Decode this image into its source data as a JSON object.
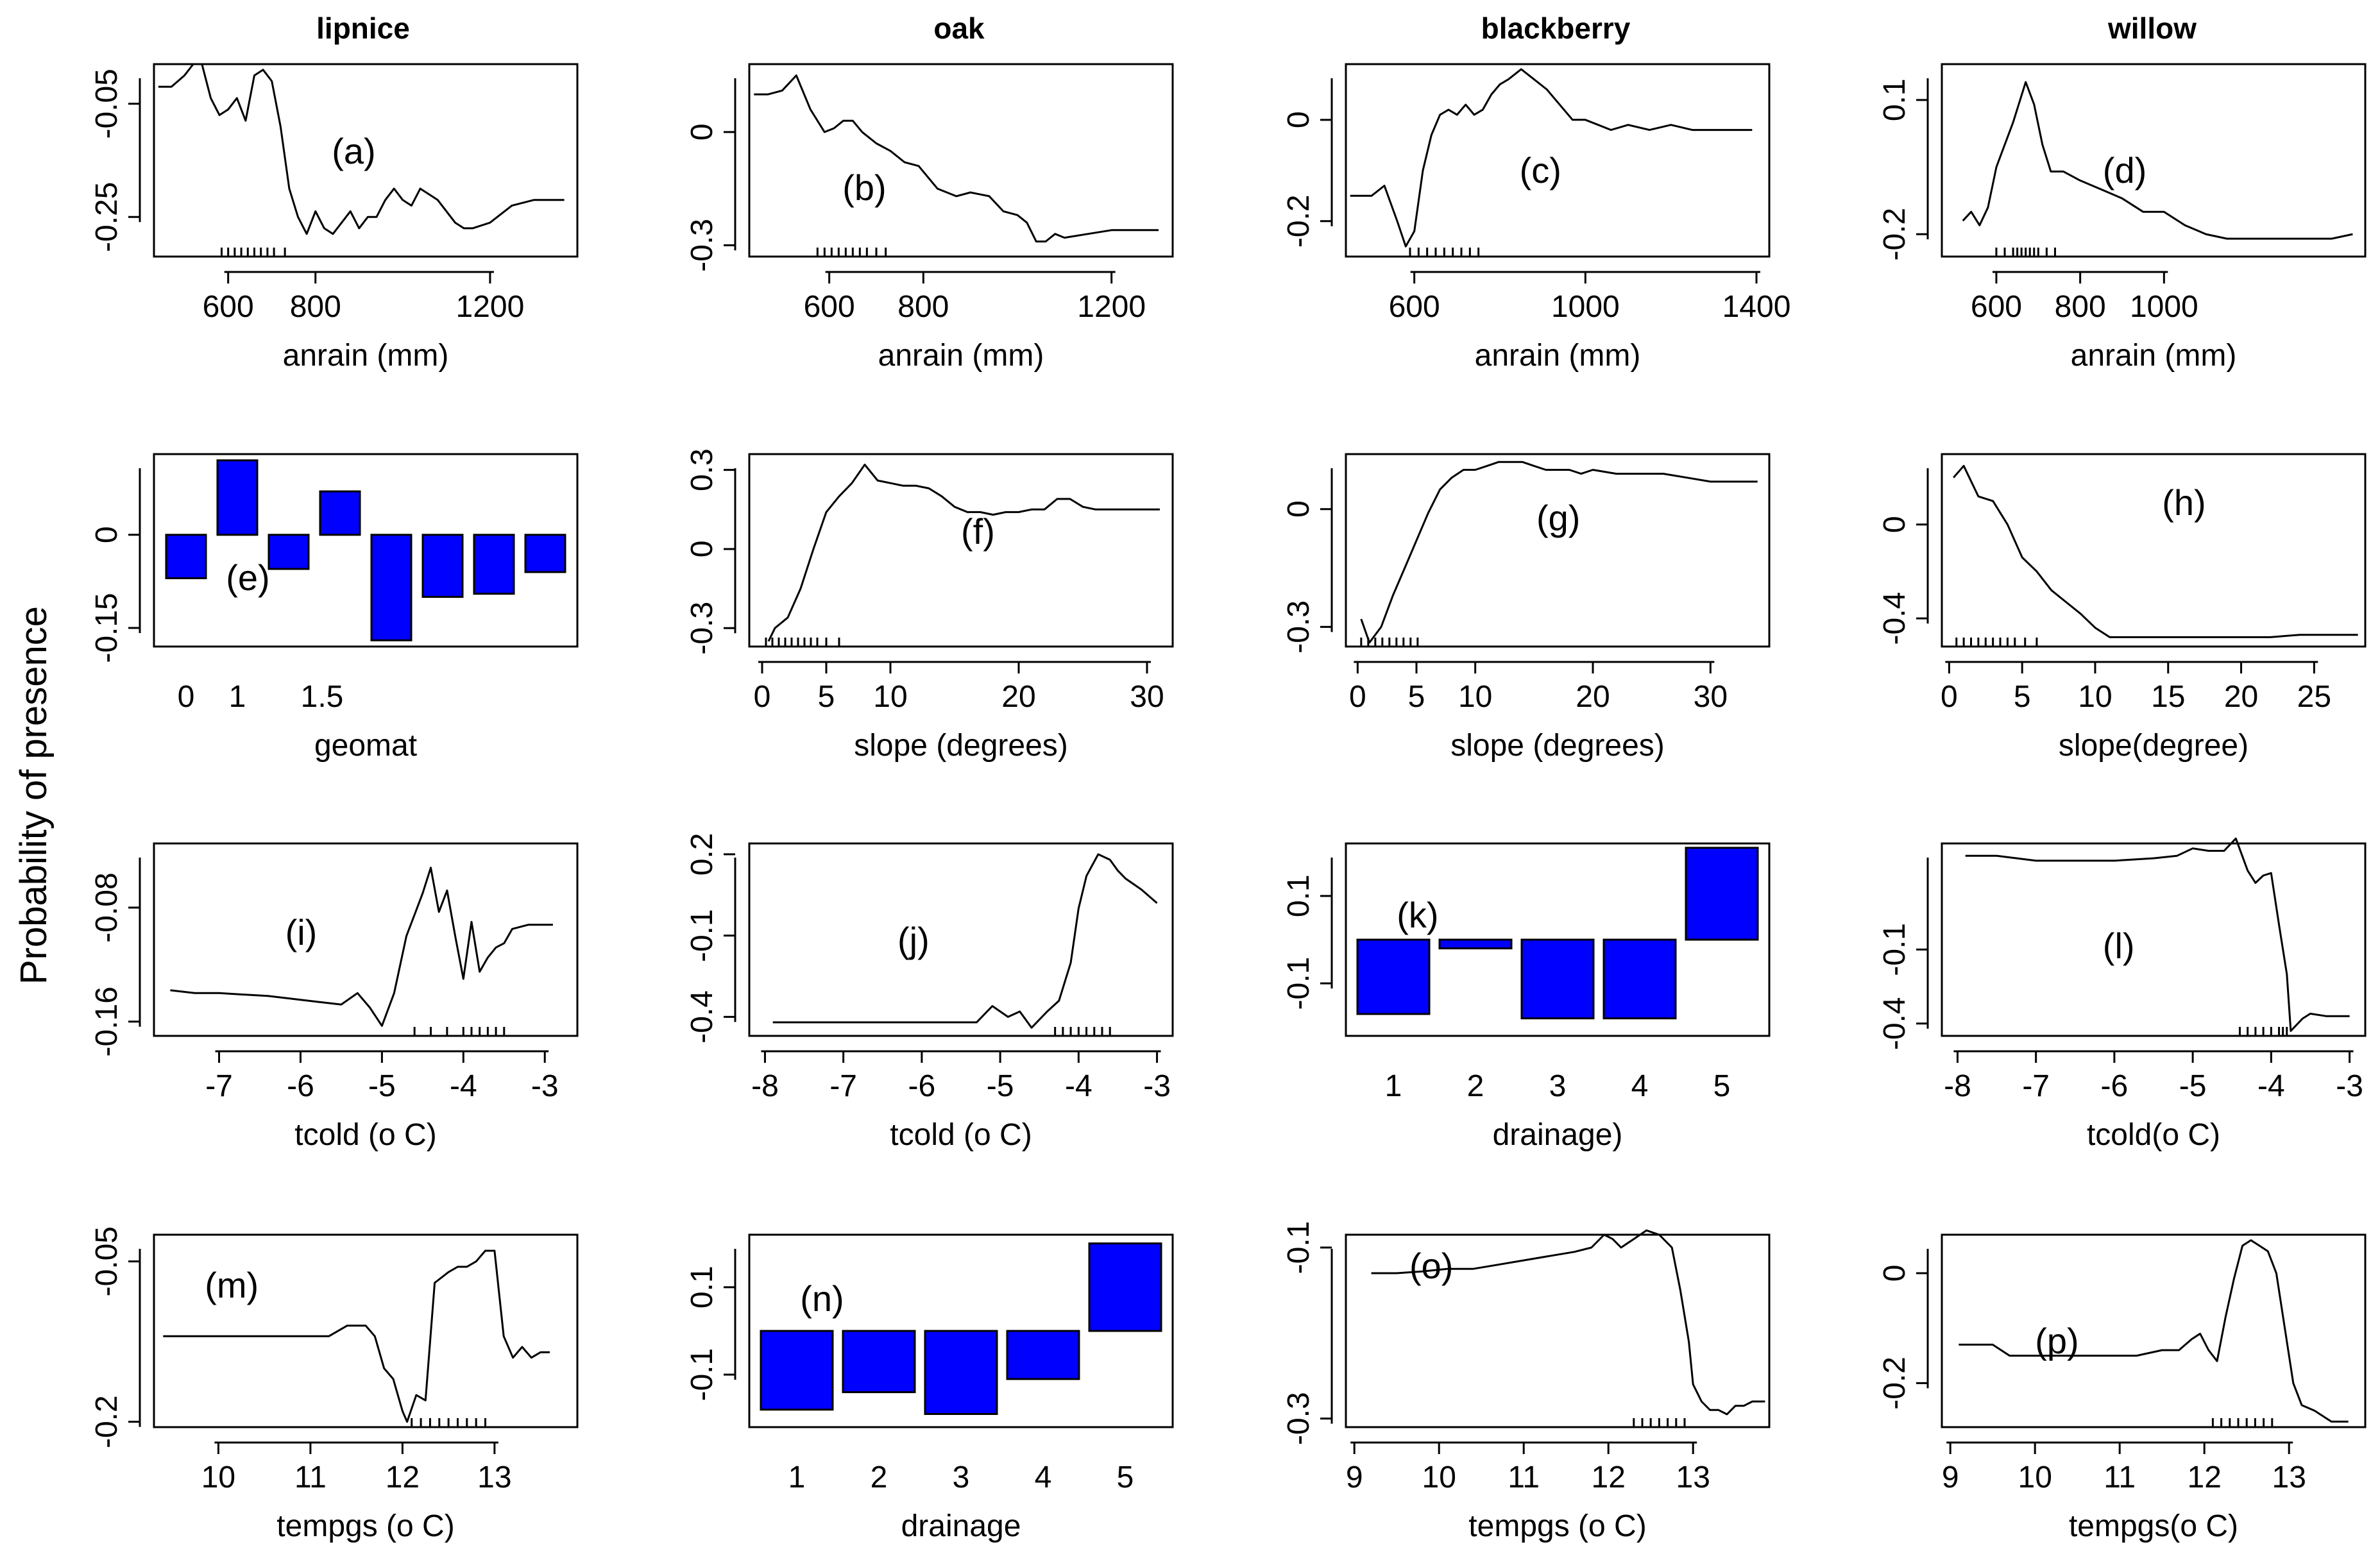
{
  "figure": {
    "ylabel": "Probability of presence"
  },
  "columns": [
    "lipnice",
    "oak",
    "blackberry",
    "willow"
  ],
  "colors": {
    "bar": "#0000ff",
    "line": "#000000"
  },
  "chart_data": [
    {
      "id": "a",
      "type": "line",
      "label": "(a)",
      "xlabel": "anrain (mm)",
      "xlim": [
        430,
        1400
      ],
      "ylim": [
        -0.32,
        0.02
      ],
      "xticks": [
        600,
        800,
        1200
      ],
      "yticks": [
        -0.25,
        -0.05
      ],
      "x": [
        440,
        470,
        500,
        520,
        540,
        560,
        580,
        600,
        620,
        640,
        650,
        660,
        680,
        700,
        720,
        740,
        760,
        780,
        800,
        820,
        840,
        860,
        880,
        900,
        920,
        940,
        960,
        980,
        1000,
        1020,
        1040,
        1060,
        1080,
        1100,
        1120,
        1140,
        1160,
        1200,
        1250,
        1300,
        1370
      ],
      "y": [
        -0.02,
        -0.02,
        0.0,
        0.02,
        0.02,
        -0.04,
        -0.07,
        -0.06,
        -0.04,
        -0.08,
        -0.04,
        0.0,
        0.01,
        -0.01,
        -0.09,
        -0.2,
        -0.25,
        -0.28,
        -0.24,
        -0.27,
        -0.28,
        -0.26,
        -0.24,
        -0.27,
        -0.25,
        -0.25,
        -0.22,
        -0.2,
        -0.22,
        -0.23,
        -0.2,
        -0.21,
        -0.22,
        -0.24,
        -0.26,
        -0.27,
        -0.27,
        -0.26,
        -0.23,
        -0.22,
        -0.22
      ],
      "rug": [
        585,
        600,
        615,
        630,
        645,
        660,
        675,
        690,
        705,
        730
      ]
    },
    {
      "id": "b",
      "type": "line",
      "label": "(b)",
      "xlabel": "anrain (mm)",
      "xlim": [
        430,
        1330
      ],
      "ylim": [
        -0.33,
        0.18
      ],
      "xticks": [
        600,
        800,
        1200
      ],
      "yticks": [
        -0.3,
        0.0
      ],
      "x": [
        440,
        470,
        500,
        530,
        560,
        590,
        610,
        630,
        650,
        670,
        700,
        730,
        760,
        790,
        830,
        870,
        900,
        940,
        970,
        1000,
        1020,
        1040,
        1060,
        1080,
        1100,
        1150,
        1200,
        1250,
        1300
      ],
      "y": [
        0.1,
        0.1,
        0.11,
        0.15,
        0.06,
        0.0,
        0.01,
        0.03,
        0.03,
        0.0,
        -0.03,
        -0.05,
        -0.08,
        -0.09,
        -0.15,
        -0.17,
        -0.16,
        -0.17,
        -0.21,
        -0.22,
        -0.24,
        -0.29,
        -0.29,
        -0.27,
        -0.28,
        -0.27,
        -0.26,
        -0.26,
        -0.26
      ],
      "rug": [
        575,
        590,
        605,
        620,
        635,
        650,
        665,
        680,
        700,
        720
      ]
    },
    {
      "id": "c",
      "type": "line",
      "label": "(c)",
      "xlabel": "anrain (mm)",
      "xlim": [
        440,
        1430
      ],
      "ylim": [
        -0.27,
        0.11
      ],
      "xticks": [
        600,
        1000,
        1400
      ],
      "yticks": [
        -0.2,
        0.0
      ],
      "x": [
        450,
        500,
        530,
        560,
        580,
        600,
        620,
        640,
        660,
        680,
        700,
        720,
        740,
        760,
        780,
        800,
        820,
        850,
        880,
        910,
        940,
        970,
        1000,
        1030,
        1060,
        1100,
        1150,
        1200,
        1250,
        1300,
        1350,
        1390
      ],
      "y": [
        -0.15,
        -0.15,
        -0.13,
        -0.2,
        -0.25,
        -0.22,
        -0.1,
        -0.03,
        0.01,
        0.02,
        0.01,
        0.03,
        0.01,
        0.02,
        0.05,
        0.07,
        0.08,
        0.1,
        0.08,
        0.06,
        0.03,
        0.0,
        0.0,
        -0.01,
        -0.02,
        -0.01,
        -0.02,
        -0.01,
        -0.02,
        -0.02,
        -0.02,
        -0.02
      ],
      "rug": [
        590,
        610,
        630,
        650,
        670,
        690,
        710,
        730,
        750
      ]
    },
    {
      "id": "d",
      "type": "line",
      "label": "(d)",
      "xlabel": "anrain (mm)",
      "xlim": [
        470,
        1480
      ],
      "ylim": [
        -0.25,
        0.18
      ],
      "xticks": [
        600,
        800,
        1000
      ],
      "yticks": [
        -0.2,
        0.1
      ],
      "x": [
        520,
        540,
        560,
        580,
        600,
        620,
        640,
        660,
        670,
        690,
        710,
        730,
        760,
        800,
        850,
        900,
        950,
        1000,
        1050,
        1100,
        1150,
        1200,
        1250,
        1300,
        1350,
        1400,
        1450
      ],
      "y": [
        -0.17,
        -0.15,
        -0.18,
        -0.14,
        -0.05,
        0.0,
        0.05,
        0.11,
        0.14,
        0.09,
        0.0,
        -0.06,
        -0.06,
        -0.08,
        -0.1,
        -0.12,
        -0.15,
        -0.15,
        -0.18,
        -0.2,
        -0.21,
        -0.21,
        -0.21,
        -0.21,
        -0.21,
        -0.21,
        -0.2
      ],
      "rug": [
        600,
        620,
        640,
        650,
        660,
        670,
        680,
        690,
        700,
        720,
        740
      ]
    },
    {
      "id": "e",
      "type": "bar",
      "label": "(e)",
      "xlabel": "geomat",
      "ylim": [
        -0.18,
        0.13
      ],
      "categories": [
        "0",
        "1",
        "",
        "1.5",
        "",
        "",
        "",
        ""
      ],
      "tick_labels": [
        "0",
        "1",
        "1.5"
      ],
      "yticks": [
        -0.15,
        0.0
      ],
      "values": [
        -0.07,
        0.12,
        -0.055,
        0.07,
        -0.17,
        -0.1,
        -0.095,
        -0.06
      ]
    },
    {
      "id": "f",
      "type": "line",
      "label": "(f)",
      "xlabel": "slope (degrees)",
      "xlim": [
        -1,
        32
      ],
      "ylim": [
        -0.37,
        0.36
      ],
      "xticks": [
        0,
        5,
        10,
        20,
        30
      ],
      "yticks": [
        -0.3,
        0.0,
        0.3
      ],
      "x": [
        0.5,
        1,
        2,
        3,
        4,
        5,
        6,
        7,
        8,
        9,
        10,
        11,
        12,
        13,
        14,
        15,
        16,
        17,
        18,
        19,
        20,
        21,
        22,
        23,
        24,
        25,
        26,
        27,
        28,
        29,
        30,
        31
      ],
      "y": [
        -0.35,
        -0.3,
        -0.26,
        -0.15,
        0.0,
        0.14,
        0.2,
        0.25,
        0.32,
        0.26,
        0.25,
        0.24,
        0.24,
        0.23,
        0.2,
        0.16,
        0.14,
        0.14,
        0.13,
        0.14,
        0.14,
        0.15,
        0.15,
        0.19,
        0.19,
        0.16,
        0.15,
        0.15,
        0.15,
        0.15,
        0.15,
        0.15
      ],
      "rug": [
        0.3,
        0.8,
        1.3,
        1.8,
        2.3,
        2.8,
        3.3,
        3.8,
        4.3,
        5,
        6
      ]
    },
    {
      "id": "g",
      "type": "line",
      "label": "(g)",
      "xlabel": "slope (degrees)",
      "xlim": [
        -1,
        35
      ],
      "ylim": [
        -0.35,
        0.14
      ],
      "xticks": [
        0,
        5,
        10,
        20,
        30
      ],
      "yticks": [
        -0.3,
        0.0
      ],
      "x": [
        0.3,
        1,
        2,
        3,
        4,
        5,
        6,
        7,
        8,
        9,
        10,
        11,
        12,
        13,
        14,
        15,
        16,
        17,
        18,
        19,
        20,
        22,
        24,
        26,
        28,
        30,
        32,
        34
      ],
      "y": [
        -0.28,
        -0.34,
        -0.3,
        -0.22,
        -0.15,
        -0.08,
        -0.01,
        0.05,
        0.08,
        0.1,
        0.1,
        0.11,
        0.12,
        0.12,
        0.12,
        0.11,
        0.1,
        0.1,
        0.1,
        0.09,
        0.1,
        0.09,
        0.09,
        0.09,
        0.08,
        0.07,
        0.07,
        0.07
      ],
      "rug": [
        0.3,
        0.9,
        1.5,
        2.1,
        2.7,
        3.3,
        3.9,
        4.5,
        5.1
      ]
    },
    {
      "id": "h",
      "type": "line",
      "label": "(h)",
      "xlabel": "slope(degree)",
      "xlim": [
        -0.5,
        28.5
      ],
      "ylim": [
        -0.52,
        0.3
      ],
      "xticks": [
        0,
        5,
        10,
        15,
        20,
        25
      ],
      "yticks": [
        -0.4,
        0.0
      ],
      "x": [
        0.3,
        1,
        2,
        3,
        4,
        5,
        6,
        7,
        8,
        9,
        10,
        11,
        12,
        14,
        16,
        18,
        20,
        22,
        24,
        26,
        28
      ],
      "y": [
        0.2,
        0.25,
        0.12,
        0.1,
        0.0,
        -0.14,
        -0.2,
        -0.28,
        -0.33,
        -0.38,
        -0.44,
        -0.48,
        -0.48,
        -0.48,
        -0.48,
        -0.48,
        -0.48,
        -0.48,
        -0.47,
        -0.47,
        -0.47
      ],
      "rug": [
        0.5,
        1,
        1.5,
        2,
        2.5,
        3,
        3.5,
        4,
        4.5,
        5.2,
        6
      ]
    },
    {
      "id": "i",
      "type": "line",
      "label": "(i)",
      "xlabel": "tcold (o C)",
      "xlim": [
        -7.8,
        -2.6
      ],
      "ylim": [
        -0.17,
        -0.035
      ],
      "xticks": [
        -7,
        -6,
        -5,
        -4,
        -3
      ],
      "yticks": [
        -0.16,
        -0.08
      ],
      "x": [
        -7.6,
        -7.3,
        -7.0,
        -6.7,
        -6.4,
        -6.1,
        -5.8,
        -5.5,
        -5.3,
        -5.15,
        -5.0,
        -4.85,
        -4.7,
        -4.6,
        -4.5,
        -4.4,
        -4.3,
        -4.2,
        -4.1,
        -4.0,
        -3.9,
        -3.8,
        -3.7,
        -3.6,
        -3.5,
        -3.4,
        -3.2,
        -3.0,
        -2.9
      ],
      "y": [
        -0.138,
        -0.14,
        -0.14,
        -0.141,
        -0.142,
        -0.144,
        -0.146,
        -0.148,
        -0.14,
        -0.15,
        -0.163,
        -0.14,
        -0.1,
        -0.085,
        -0.07,
        -0.052,
        -0.083,
        -0.068,
        -0.1,
        -0.13,
        -0.09,
        -0.125,
        -0.115,
        -0.108,
        -0.105,
        -0.095,
        -0.092,
        -0.092,
        -0.092
      ],
      "rug": [
        -4.6,
        -4.4,
        -4.2,
        -4.0,
        -3.9,
        -3.8,
        -3.7,
        -3.6,
        -3.5
      ]
    },
    {
      "id": "j",
      "type": "line",
      "label": "(j)",
      "xlabel": "tcold (o C)",
      "xlim": [
        -8.2,
        -2.8
      ],
      "ylim": [
        -0.47,
        0.24
      ],
      "xticks": [
        -8,
        -7,
        -6,
        -5,
        -4,
        -3
      ],
      "yticks": [
        -0.4,
        -0.1,
        0.2
      ],
      "x": [
        -7.9,
        -7.5,
        -7.0,
        -6.5,
        -6.0,
        -5.5,
        -5.3,
        -5.1,
        -4.9,
        -4.75,
        -4.6,
        -4.4,
        -4.25,
        -4.1,
        -4.0,
        -3.9,
        -3.75,
        -3.6,
        -3.5,
        -3.4,
        -3.2,
        -3.0
      ],
      "y": [
        -0.42,
        -0.42,
        -0.42,
        -0.42,
        -0.42,
        -0.42,
        -0.42,
        -0.36,
        -0.4,
        -0.38,
        -0.44,
        -0.38,
        -0.34,
        -0.2,
        0.0,
        0.12,
        0.2,
        0.18,
        0.14,
        0.11,
        0.07,
        0.02
      ],
      "rug": [
        -4.3,
        -4.2,
        -4.1,
        -4.0,
        -3.9,
        -3.8,
        -3.7,
        -3.6
      ]
    },
    {
      "id": "k",
      "type": "bar",
      "label": "(k)",
      "xlabel": "drainage)",
      "ylim": [
        -0.22,
        0.22
      ],
      "categories": [
        "1",
        "2",
        "3",
        "4",
        "5"
      ],
      "yticks": [
        -0.1,
        0.1
      ],
      "values": [
        -0.17,
        -0.02,
        -0.18,
        -0.18,
        0.21
      ]
    },
    {
      "id": "l",
      "type": "line",
      "label": "(l)",
      "xlabel": "tcold(o C)",
      "xlim": [
        -8.2,
        -2.8
      ],
      "ylim": [
        -0.45,
        0.33
      ],
      "xticks": [
        -8,
        -7,
        -6,
        -5,
        -4,
        -3
      ],
      "yticks": [
        -0.4,
        -0.1
      ],
      "x": [
        -7.9,
        -7.5,
        -7.0,
        -6.5,
        -6.0,
        -5.5,
        -5.2,
        -5.0,
        -4.8,
        -4.6,
        -4.45,
        -4.3,
        -4.2,
        -4.1,
        -4.0,
        -3.9,
        -3.8,
        -3.75,
        -3.6,
        -3.5,
        -3.3,
        -3.0
      ],
      "y": [
        0.28,
        0.28,
        0.26,
        0.26,
        0.26,
        0.27,
        0.28,
        0.31,
        0.3,
        0.3,
        0.35,
        0.22,
        0.17,
        0.2,
        0.21,
        0.0,
        -0.2,
        -0.43,
        -0.38,
        -0.36,
        -0.37,
        -0.37
      ],
      "rug": [
        -4.4,
        -4.3,
        -4.2,
        -4.1,
        -4.0,
        -3.9,
        -3.85,
        -3.8
      ]
    },
    {
      "id": "m",
      "type": "line",
      "label": "(m)",
      "xlabel": "tempgs (o C)",
      "xlim": [
        9.3,
        13.9
      ],
      "ylim": [
        -0.205,
        -0.025
      ],
      "xticks": [
        10,
        11,
        12,
        13
      ],
      "yticks": [
        -0.2,
        -0.05
      ],
      "x": [
        9.4,
        9.7,
        10.0,
        10.3,
        10.6,
        10.9,
        11.2,
        11.4,
        11.6,
        11.7,
        11.8,
        11.9,
        12.0,
        12.05,
        12.15,
        12.25,
        12.35,
        12.5,
        12.6,
        12.7,
        12.8,
        12.9,
        13.0,
        13.1,
        13.2,
        13.3,
        13.4,
        13.5,
        13.6
      ],
      "y": [
        -0.12,
        -0.12,
        -0.12,
        -0.12,
        -0.12,
        -0.12,
        -0.12,
        -0.11,
        -0.11,
        -0.12,
        -0.15,
        -0.16,
        -0.19,
        -0.2,
        -0.175,
        -0.18,
        -0.07,
        -0.06,
        -0.055,
        -0.055,
        -0.05,
        -0.04,
        -0.04,
        -0.12,
        -0.14,
        -0.13,
        -0.14,
        -0.135,
        -0.135
      ],
      "rug": [
        12.1,
        12.2,
        12.3,
        12.4,
        12.5,
        12.6,
        12.7,
        12.8,
        12.9
      ]
    },
    {
      "id": "n",
      "type": "bar",
      "label": "(n)",
      "xlabel": "drainage",
      "ylim": [
        -0.22,
        0.22
      ],
      "categories": [
        "1",
        "2",
        "3",
        "4",
        "5"
      ],
      "yticks": [
        -0.1,
        0.1
      ],
      "values": [
        -0.18,
        -0.14,
        -0.19,
        -0.11,
        0.2
      ]
    },
    {
      "id": "o",
      "type": "line",
      "label": "(o)",
      "xlabel": "tempgs (o C)",
      "xlim": [
        8.9,
        13.9
      ],
      "ylim": [
        -0.31,
        -0.085
      ],
      "xticks": [
        9,
        10,
        11,
        12,
        13
      ],
      "yticks": [
        -0.3,
        -0.1
      ],
      "x": [
        9.2,
        9.5,
        9.8,
        10.1,
        10.4,
        10.7,
        11.0,
        11.3,
        11.6,
        11.8,
        11.95,
        12.05,
        12.15,
        12.3,
        12.45,
        12.6,
        12.75,
        12.85,
        12.95,
        13.0,
        13.1,
        13.2,
        13.3,
        13.4,
        13.5,
        13.6,
        13.7,
        13.85
      ],
      "y": [
        -0.13,
        -0.13,
        -0.128,
        -0.125,
        -0.125,
        -0.12,
        -0.115,
        -0.11,
        -0.105,
        -0.1,
        -0.085,
        -0.09,
        -0.1,
        -0.09,
        -0.08,
        -0.085,
        -0.1,
        -0.15,
        -0.21,
        -0.26,
        -0.28,
        -0.29,
        -0.29,
        -0.295,
        -0.285,
        -0.285,
        -0.28,
        -0.28
      ],
      "rug": [
        12.3,
        12.4,
        12.5,
        12.6,
        12.7,
        12.8,
        12.9
      ]
    },
    {
      "id": "p",
      "type": "line",
      "label": "(p)",
      "xlabel": "tempgs(o C)",
      "xlim": [
        8.9,
        13.9
      ],
      "ylim": [
        -0.28,
        0.07
      ],
      "xticks": [
        9,
        10,
        11,
        12,
        13
      ],
      "yticks": [
        -0.2,
        0.0
      ],
      "x": [
        9.1,
        9.3,
        9.5,
        9.7,
        10.0,
        10.3,
        10.6,
        10.9,
        11.2,
        11.5,
        11.7,
        11.85,
        11.95,
        12.05,
        12.15,
        12.25,
        12.35,
        12.45,
        12.55,
        12.65,
        12.75,
        12.85,
        12.95,
        13.05,
        13.15,
        13.3,
        13.5,
        13.7
      ],
      "y": [
        -0.13,
        -0.13,
        -0.13,
        -0.15,
        -0.15,
        -0.15,
        -0.15,
        -0.15,
        -0.15,
        -0.14,
        -0.14,
        -0.12,
        -0.11,
        -0.14,
        -0.16,
        -0.08,
        -0.01,
        0.05,
        0.06,
        0.05,
        0.04,
        0.0,
        -0.1,
        -0.2,
        -0.24,
        -0.25,
        -0.27,
        -0.27
      ],
      "rug": [
        12.1,
        12.2,
        12.3,
        12.4,
        12.5,
        12.6,
        12.7,
        12.8
      ]
    }
  ]
}
